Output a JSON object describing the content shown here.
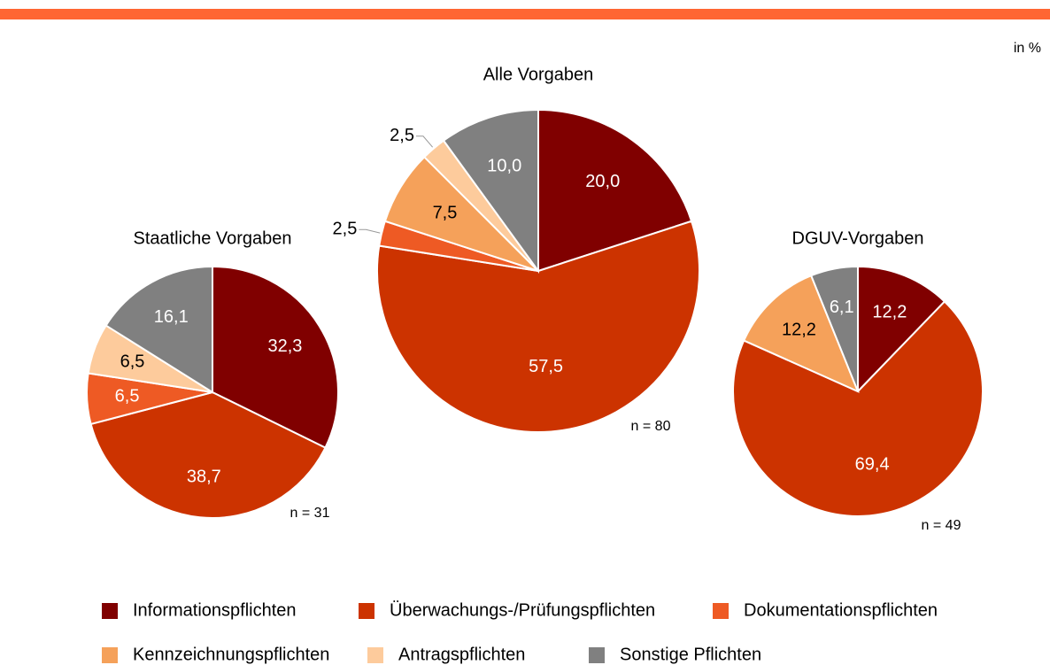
{
  "unit_label": "in %",
  "legend": {
    "categories": [
      "Informationspflichten",
      "Überwachungs-/Prüfungspflichten",
      "Dokumentationspflichten",
      "Kennzeichnungspflichten",
      "Antragspflichten",
      "Sonstige Pflichten"
    ],
    "colors": [
      "#800000",
      "#cc3300",
      "#ee5a24",
      "#f5a15a",
      "#fdcb9c",
      "#808080"
    ]
  },
  "chart_data": [
    {
      "type": "pie",
      "title": "Staatliche Vorgaben",
      "annotation": "n = 31",
      "values": [
        32.3,
        38.7,
        6.5,
        null,
        6.5,
        16.1
      ],
      "value_labels": [
        "32,3",
        "38,7",
        "6,5",
        null,
        "6,5",
        "16,1"
      ]
    },
    {
      "type": "pie",
      "title": "Alle Vorgaben",
      "annotation": "n = 80",
      "values": [
        20.0,
        57.5,
        2.5,
        7.5,
        2.5,
        10.0
      ],
      "value_labels": [
        "20,0",
        "57,5",
        "2,5",
        "7,5",
        "2,5",
        "10,0"
      ]
    },
    {
      "type": "pie",
      "title": "DGUV-Vorgaben",
      "annotation": "n = 49",
      "values": [
        12.2,
        69.4,
        null,
        12.2,
        null,
        6.1
      ],
      "value_labels": [
        "12,2",
        "69,4",
        null,
        "12,2",
        null,
        "6,1"
      ]
    }
  ]
}
